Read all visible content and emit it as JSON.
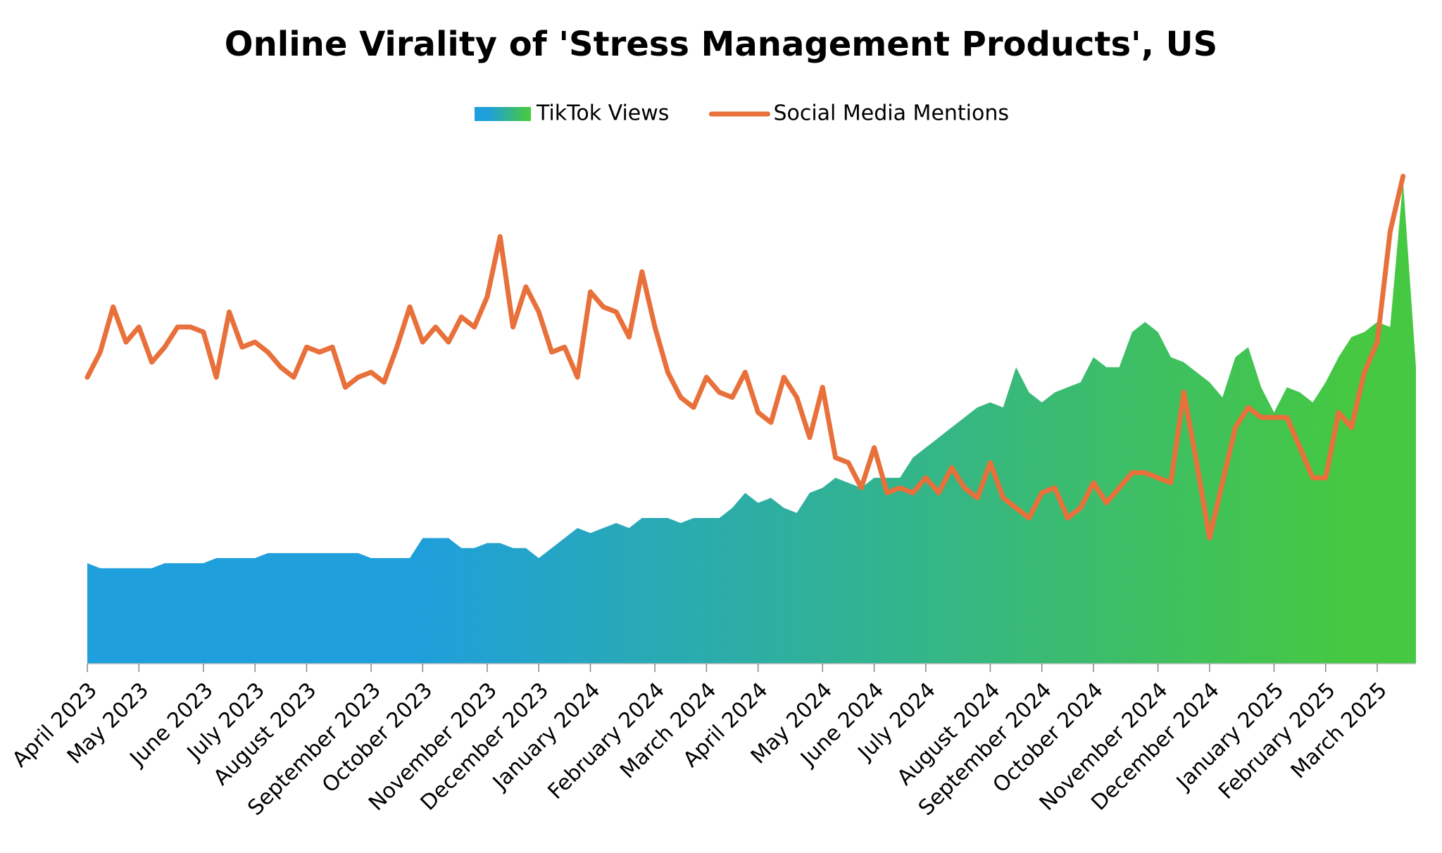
{
  "chart_data": {
    "type": "area-line",
    "title": "Online Virality of 'Stress Management Products', US",
    "categories": [
      "April 2023",
      null,
      null,
      null,
      "May 2023",
      null,
      null,
      null,
      null,
      "June 2023",
      null,
      null,
      null,
      "July 2023",
      null,
      null,
      null,
      "August 2023",
      null,
      null,
      null,
      null,
      "September 2023",
      null,
      null,
      null,
      "October 2023",
      null,
      null,
      null,
      null,
      "November 2023",
      null,
      null,
      null,
      "December 2023",
      null,
      null,
      null,
      "January 2024",
      null,
      null,
      null,
      null,
      "February 2024",
      null,
      null,
      null,
      "March 2024",
      null,
      null,
      null,
      "April 2024",
      null,
      null,
      null,
      null,
      "May 2024",
      null,
      null,
      null,
      "June 2024",
      null,
      null,
      null,
      "July 2024",
      null,
      null,
      null,
      null,
      "August 2024",
      null,
      null,
      null,
      "September 2024",
      null,
      null,
      null,
      "October 2024",
      null,
      null,
      null,
      null,
      "November 2024",
      null,
      null,
      null,
      "December 2024",
      null,
      null,
      null,
      null,
      "January 2025",
      null,
      null,
      null,
      "February 2025",
      null,
      null,
      null,
      "March 2025",
      null,
      null,
      null
    ],
    "ylim": [
      0,
      100
    ],
    "legend": "top",
    "series": [
      {
        "name": "TikTok Views",
        "kind": "area",
        "color": "#1f9fdb",
        "color_end": "#46c842",
        "values": [
          20,
          19,
          19,
          19,
          19,
          19,
          20,
          20,
          20,
          20,
          21,
          21,
          21,
          21,
          22,
          22,
          22,
          22,
          22,
          22,
          22,
          22,
          21,
          21,
          21,
          21,
          25,
          25,
          25,
          23,
          23,
          24,
          24,
          23,
          23,
          21,
          23,
          25,
          27,
          26,
          27,
          28,
          27,
          29,
          29,
          29,
          28,
          29,
          29,
          29,
          31,
          34,
          32,
          33,
          31,
          30,
          34,
          35,
          37,
          36,
          35,
          37,
          37,
          37,
          41,
          43,
          45,
          47,
          49,
          51,
          52,
          51,
          59,
          54,
          52,
          54,
          55,
          56,
          61,
          59,
          59,
          66,
          68,
          66,
          61,
          60,
          58,
          56,
          53,
          61,
          63,
          55,
          50,
          55,
          54,
          52,
          56,
          61,
          65,
          66,
          68,
          67,
          96,
          59
        ]
      },
      {
        "name": "Social Media Mentions",
        "kind": "line",
        "color": "#e8703a",
        "values": [
          57,
          62,
          71,
          64,
          67,
          60,
          63,
          67,
          67,
          66,
          57,
          70,
          63,
          64,
          62,
          59,
          57,
          63,
          62,
          63,
          55,
          57,
          58,
          56,
          63,
          71,
          64,
          67,
          64,
          69,
          67,
          73,
          85,
          67,
          75,
          70,
          62,
          63,
          57,
          74,
          71,
          70,
          65,
          78,
          67,
          58,
          53,
          51,
          57,
          54,
          53,
          58,
          50,
          48,
          57,
          53,
          45,
          55,
          41,
          40,
          35,
          43,
          34,
          35,
          34,
          37,
          34,
          39,
          35,
          33,
          40,
          33,
          31,
          29,
          34,
          35,
          29,
          31,
          36,
          32,
          35,
          38,
          38,
          37,
          36,
          54,
          40,
          25,
          36,
          47,
          51,
          49,
          49,
          49,
          43,
          37,
          37,
          50,
          47,
          58,
          64,
          86,
          97,
          null
        ]
      }
    ]
  }
}
